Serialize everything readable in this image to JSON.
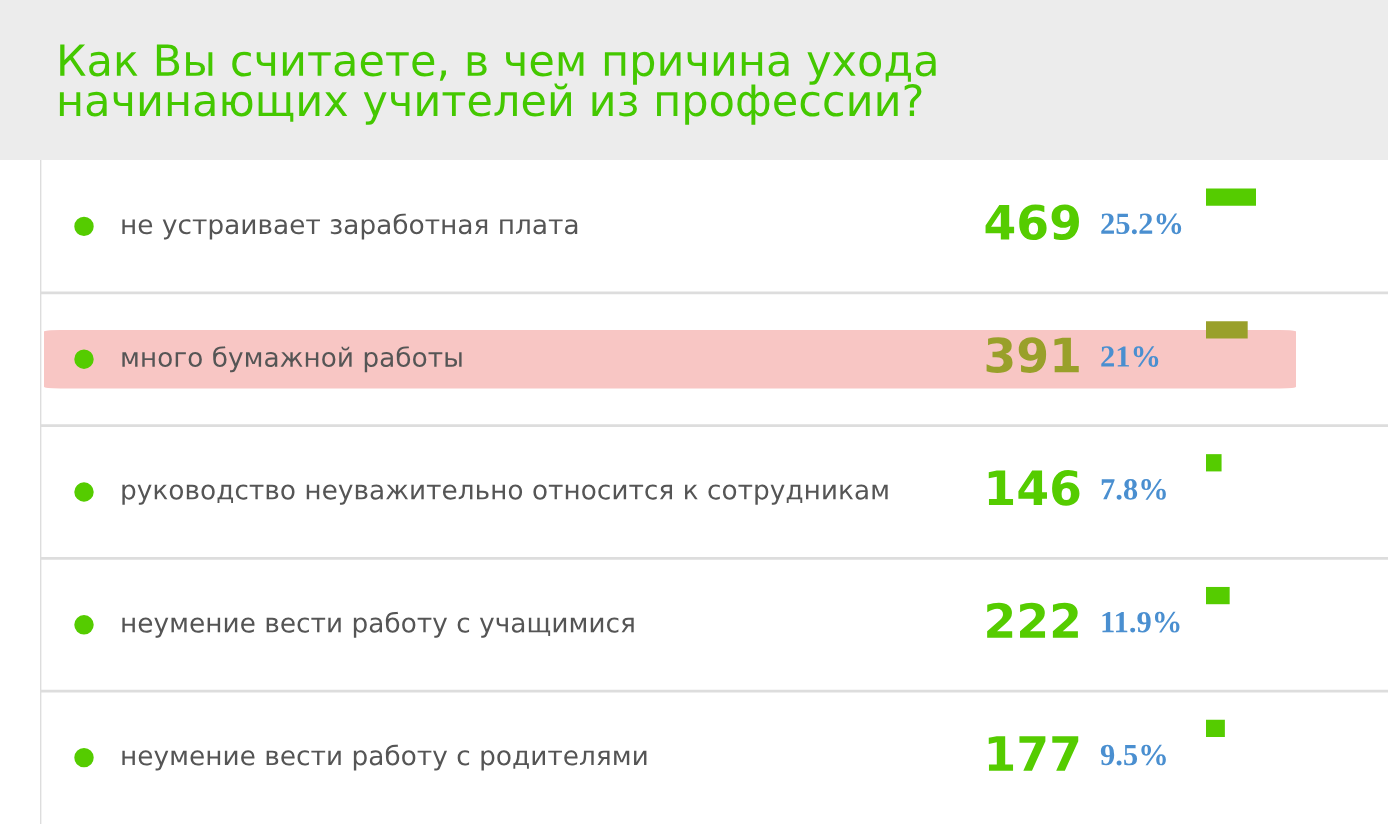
{
  "chart_data": {
    "type": "bar",
    "orientation": "horizontal",
    "title": "Как Вы считаете, в чем причина ухода\nначинающих учителей из профессии?",
    "categories": [
      "не устраивает заработная плата",
      "много бумажной работы",
      "руководство неуважительно относится к сотрудникам",
      "неумение вести работу с учащимися",
      "неумение вести работу с родителями"
    ],
    "values": [
      469,
      391,
      146,
      222,
      177
    ],
    "colors": [
      "#55cc00",
      "#99a02a",
      "#55cc00",
      "#55cc00",
      "#55cc00"
    ],
    "data_labels": true,
    "annotations": [
      "25.2%",
      "21%",
      "7.8%",
      "11.9%",
      "9.5%"
    ],
    "bands": [
      {
        "axis": "y",
        "from": "много бумажной работы",
        "to": "много бумажной работы",
        "color": "#f8c6c4"
      }
    ],
    "legend": false
  }
}
